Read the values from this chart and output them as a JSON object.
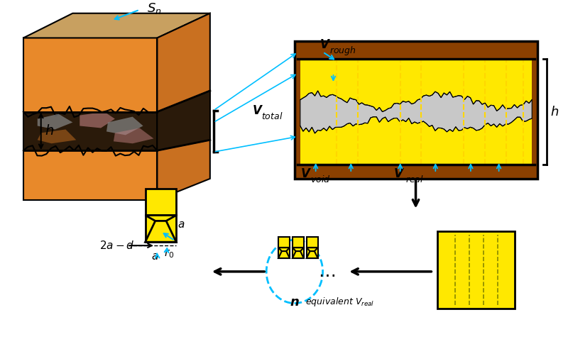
{
  "bg_color": "#ffffff",
  "rock_colors": {
    "orange_face": "#E8892A",
    "orange_dark": "#C97020",
    "orange_top": "#C8A060",
    "dark_brown": "#8B4513",
    "crack_dark": "#2a1a0a",
    "crack_grey": "#888888",
    "crack_pink": "#c08080"
  },
  "yellow": "#FFE800",
  "brown_rect": "#8B4000",
  "cyan": "#00BFFF",
  "black": "#000000",
  "dashed_yellow": "#FFD700",
  "white": "#FFFFFF",
  "grey_void": "#C8C8C8"
}
